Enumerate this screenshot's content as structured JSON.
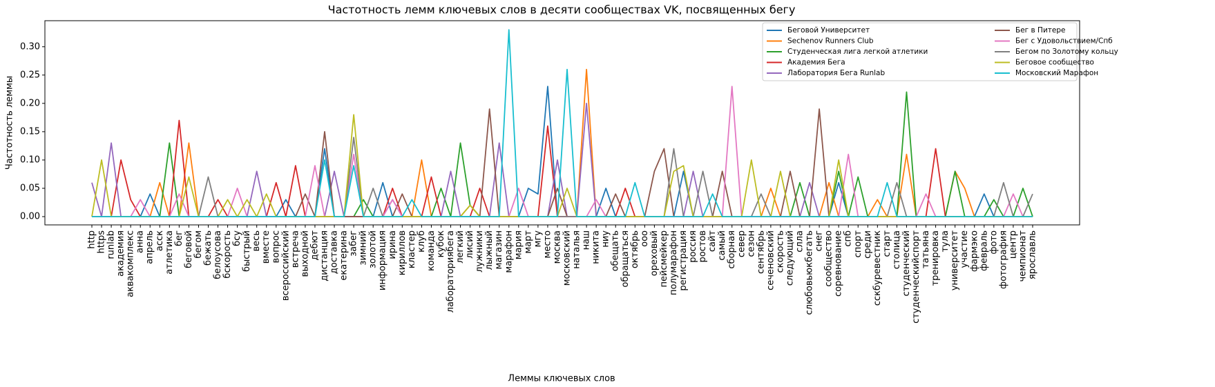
{
  "chart_data": {
    "type": "line",
    "title": "Частотность лемм ключевых слов в десяти сообществах VK, посвященных бегу",
    "x_label": "Леммы ключевых слов",
    "y_label": "Частотность леммы",
    "legend": "upper right",
    "ylim": [
      -0.0146,
      0.346
    ],
    "yticks": [
      {
        "value": 0,
        "label": "0.00"
      },
      {
        "value": 0.05,
        "label": "0.05"
      },
      {
        "value": 0.1,
        "label": "0.10"
      },
      {
        "value": 0.15,
        "label": "0.15"
      },
      {
        "value": 0.2,
        "label": "0.20"
      },
      {
        "value": 0.25,
        "label": "0.25"
      },
      {
        "value": 0.3,
        "label": "0.30"
      }
    ],
    "categories": [
      "http",
      "https",
      "runlab",
      "академия",
      "аквакомплекс",
      "анна",
      "апрель",
      "асск",
      "атлетика",
      "бег",
      "беговой",
      "бегом",
      "бежать",
      "белоусова",
      "бскорость",
      "бсу",
      "быстрый",
      "весь",
      "вместе",
      "вопрос",
      "всероссийский",
      "встреча",
      "выходной",
      "дебют",
      "дистанция",
      "доставка",
      "екатерина",
      "забег",
      "зимний",
      "золотой",
      "информация",
      "ирина",
      "кириллов",
      "кластер",
      "клуб",
      "команда",
      "кубок",
      "лабораториябега",
      "легкий",
      "лисий",
      "лужники",
      "лыжный",
      "магазин",
      "марафон",
      "мария",
      "март",
      "мгу",
      "место",
      "москва",
      "московский",
      "наталья",
      "наш",
      "никита",
      "ниу",
      "обещать",
      "обращаться",
      "октябрь",
      "ооо",
      "ореховый",
      "пейсмейкер",
      "полумарафон",
      "регистрация",
      "россия",
      "ростов",
      "сайт",
      "самый",
      "сборная",
      "север",
      "сезон",
      "сентябрь",
      "сеченовский",
      "скорость",
      "следующий",
      "слла",
      "слюбовьюкбегать",
      "снег",
      "сообщество",
      "соревнование",
      "спб",
      "спорт",
      "среди",
      "сскбуревестник",
      "старт",
      "столица",
      "студенческий",
      "студенческийспорт",
      "татьяна",
      "тренировка",
      "тула",
      "университет",
      "участие",
      "фармэко",
      "февраль",
      "фото",
      "фотография",
      "центр",
      "чемпионат",
      "ярославль"
    ],
    "series": [
      {
        "name": "Беговой Университет",
        "color": "#1f77b4",
        "values": [
          0,
          0,
          0,
          0,
          0,
          0,
          0.04,
          0,
          0,
          0,
          0,
          0,
          0,
          0,
          0,
          0,
          0,
          0,
          0,
          0,
          0.03,
          0,
          0,
          0,
          0.12,
          0,
          0,
          0,
          0,
          0,
          0.06,
          0,
          0,
          0,
          0,
          0,
          0,
          0,
          0,
          0,
          0,
          0,
          0,
          0,
          0,
          0.05,
          0.04,
          0.23,
          0,
          0,
          0,
          0,
          0,
          0.05,
          0,
          0,
          0,
          0,
          0,
          0,
          0,
          0.08,
          0,
          0,
          0,
          0,
          0,
          0,
          0,
          0,
          0,
          0,
          0,
          0,
          0,
          0,
          0,
          0.06,
          0,
          0,
          0,
          0,
          0,
          0,
          0,
          0,
          0,
          0,
          0,
          0,
          0,
          0,
          0.04,
          0,
          0,
          0,
          0,
          0
        ]
      },
      {
        "name": "Sechenov Runners Club",
        "color": "#ff7f0e",
        "values": [
          0,
          0,
          0,
          0,
          0,
          0,
          0,
          0.06,
          0,
          0,
          0.13,
          0,
          0,
          0,
          0,
          0,
          0,
          0,
          0,
          0,
          0,
          0,
          0,
          0,
          0,
          0,
          0,
          0,
          0,
          0,
          0,
          0,
          0,
          0,
          0.1,
          0,
          0,
          0,
          0,
          0.02,
          0,
          0,
          0,
          0,
          0,
          0,
          0,
          0,
          0,
          0,
          0,
          0.26,
          0,
          0,
          0,
          0,
          0,
          0,
          0,
          0,
          0,
          0,
          0,
          0,
          0,
          0,
          0,
          0,
          0,
          0,
          0.05,
          0,
          0,
          0,
          0,
          0,
          0.06,
          0,
          0,
          0,
          0,
          0.03,
          0,
          0,
          0.11,
          0,
          0,
          0,
          0,
          0.08,
          0.05,
          0,
          0,
          0,
          0,
          0,
          0,
          0
        ]
      },
      {
        "name": "Студенческая лига легкой атлетики",
        "color": "#2ca02c",
        "values": [
          0,
          0,
          0,
          0,
          0,
          0,
          0,
          0,
          0.13,
          0,
          0,
          0,
          0,
          0,
          0,
          0,
          0,
          0,
          0,
          0,
          0,
          0,
          0,
          0,
          0,
          0,
          0,
          0,
          0.03,
          0,
          0,
          0,
          0,
          0,
          0,
          0,
          0.05,
          0,
          0.13,
          0.02,
          0,
          0,
          0,
          0,
          0,
          0,
          0,
          0,
          0,
          0,
          0,
          0,
          0,
          0,
          0,
          0,
          0,
          0,
          0,
          0,
          0,
          0,
          0,
          0,
          0,
          0,
          0,
          0,
          0,
          0,
          0,
          0,
          0,
          0.06,
          0,
          0,
          0,
          0.08,
          0,
          0.07,
          0,
          0,
          0,
          0,
          0.22,
          0,
          0,
          0,
          0,
          0.08,
          0,
          0,
          0,
          0.03,
          0,
          0,
          0.05,
          0
        ]
      },
      {
        "name": "Академия Бега",
        "color": "#d62728",
        "values": [
          0,
          0,
          0,
          0.1,
          0.03,
          0,
          0,
          0,
          0,
          0.17,
          0,
          0,
          0,
          0.03,
          0,
          0,
          0,
          0,
          0,
          0.06,
          0,
          0.09,
          0,
          0,
          0,
          0,
          0,
          0,
          0,
          0,
          0,
          0.05,
          0,
          0,
          0,
          0.07,
          0,
          0,
          0,
          0,
          0.05,
          0,
          0,
          0,
          0,
          0,
          0,
          0.16,
          0,
          0,
          0,
          0,
          0,
          0,
          0,
          0.05,
          0,
          0,
          0,
          0,
          0,
          0,
          0,
          0,
          0,
          0,
          0,
          0,
          0,
          0,
          0,
          0,
          0,
          0,
          0,
          0,
          0,
          0,
          0,
          0,
          0,
          0,
          0,
          0,
          0,
          0,
          0,
          0.12,
          0,
          0,
          0,
          0,
          0,
          0,
          0,
          0,
          0,
          0
        ]
      },
      {
        "name": "Лаборатория Бега Runlab",
        "color": "#9467bd",
        "values": [
          0.06,
          0,
          0.13,
          0,
          0,
          0,
          0,
          0,
          0,
          0,
          0,
          0,
          0,
          0,
          0,
          0,
          0,
          0.08,
          0,
          0,
          0,
          0,
          0,
          0,
          0,
          0.08,
          0,
          0,
          0,
          0,
          0,
          0.03,
          0,
          0,
          0,
          0,
          0,
          0.08,
          0,
          0,
          0,
          0,
          0.13,
          0,
          0,
          0,
          0,
          0,
          0.1,
          0,
          0,
          0.2,
          0,
          0,
          0,
          0,
          0,
          0,
          0,
          0,
          0,
          0,
          0.08,
          0,
          0,
          0,
          0,
          0,
          0,
          0,
          0,
          0,
          0,
          0,
          0.06,
          0,
          0,
          0,
          0,
          0,
          0,
          0,
          0,
          0,
          0,
          0,
          0,
          0,
          0,
          0,
          0,
          0,
          0,
          0,
          0,
          0,
          0,
          0
        ]
      },
      {
        "name": "Бег в Питере",
        "color": "#8c564b",
        "values": [
          0,
          0,
          0,
          0,
          0,
          0,
          0,
          0,
          0,
          0,
          0,
          0,
          0,
          0,
          0,
          0,
          0,
          0,
          0,
          0,
          0,
          0,
          0.04,
          0,
          0.15,
          0,
          0,
          0,
          0,
          0,
          0,
          0,
          0.04,
          0,
          0,
          0,
          0,
          0,
          0,
          0,
          0,
          0.19,
          0,
          0,
          0,
          0,
          0,
          0,
          0.05,
          0,
          0,
          0,
          0,
          0,
          0.04,
          0,
          0,
          0,
          0.08,
          0.12,
          0,
          0,
          0,
          0,
          0,
          0.08,
          0,
          0,
          0,
          0,
          0,
          0,
          0.08,
          0,
          0,
          0.19,
          0,
          0,
          0,
          0,
          0,
          0,
          0,
          0,
          0,
          0,
          0,
          0,
          0,
          0,
          0,
          0,
          0,
          0,
          0,
          0,
          0,
          0
        ]
      },
      {
        "name": "Бег с Удовольствием/Спб",
        "color": "#e377c2",
        "values": [
          0,
          0,
          0,
          0,
          0,
          0.03,
          0,
          0,
          0,
          0.04,
          0,
          0,
          0,
          0,
          0,
          0.05,
          0,
          0,
          0,
          0,
          0,
          0,
          0,
          0.09,
          0,
          0,
          0,
          0.11,
          0,
          0,
          0,
          0.03,
          0,
          0,
          0,
          0,
          0,
          0,
          0,
          0,
          0,
          0,
          0,
          0,
          0.05,
          0,
          0,
          0,
          0,
          0,
          0,
          0,
          0.03,
          0,
          0,
          0,
          0,
          0,
          0,
          0,
          0,
          0,
          0,
          0,
          0,
          0,
          0.23,
          0,
          0,
          0,
          0,
          0,
          0,
          0,
          0,
          0,
          0,
          0,
          0.11,
          0,
          0,
          0,
          0,
          0,
          0,
          0,
          0.04,
          0,
          0,
          0,
          0,
          0,
          0,
          0,
          0,
          0.04,
          0,
          0
        ]
      },
      {
        "name": "Бегом по Золотому кольцу",
        "color": "#7f7f7f",
        "values": [
          0,
          0,
          0,
          0,
          0,
          0,
          0,
          0,
          0,
          0,
          0,
          0,
          0.07,
          0,
          0,
          0,
          0,
          0,
          0,
          0,
          0,
          0,
          0,
          0,
          0,
          0,
          0,
          0.14,
          0,
          0.05,
          0,
          0,
          0,
          0,
          0,
          0,
          0,
          0,
          0,
          0,
          0,
          0,
          0,
          0,
          0,
          0,
          0,
          0,
          0,
          0,
          0,
          0,
          0,
          0,
          0,
          0,
          0,
          0,
          0,
          0,
          0.12,
          0,
          0,
          0.08,
          0,
          0,
          0,
          0,
          0,
          0.04,
          0,
          0,
          0,
          0,
          0,
          0,
          0,
          0,
          0,
          0,
          0,
          0,
          0,
          0.06,
          0,
          0,
          0,
          0,
          0,
          0,
          0,
          0,
          0,
          0,
          0.06,
          0,
          0,
          0.04
        ]
      },
      {
        "name": "Беговое сообщество",
        "color": "#bcbd22",
        "values": [
          0,
          0.1,
          0,
          0,
          0,
          0,
          0,
          0,
          0,
          0,
          0.07,
          0,
          0,
          0,
          0.03,
          0,
          0.03,
          0,
          0.04,
          0,
          0,
          0,
          0,
          0,
          0,
          0,
          0,
          0.18,
          0,
          0,
          0,
          0,
          0,
          0,
          0,
          0,
          0,
          0,
          0,
          0.02,
          0,
          0,
          0,
          0,
          0,
          0,
          0,
          0,
          0,
          0.05,
          0,
          0,
          0,
          0,
          0,
          0,
          0,
          0,
          0,
          0,
          0.08,
          0.09,
          0,
          0,
          0,
          0,
          0,
          0,
          0.1,
          0,
          0,
          0.08,
          0,
          0,
          0,
          0,
          0,
          0.1,
          0,
          0,
          0,
          0,
          0,
          0,
          0,
          0,
          0,
          0,
          0,
          0,
          0,
          0,
          0,
          0,
          0,
          0,
          0,
          0
        ]
      },
      {
        "name": "Московский Марафон",
        "color": "#17becf",
        "values": [
          0,
          0,
          0,
          0,
          0,
          0,
          0,
          0,
          0,
          0,
          0,
          0,
          0,
          0,
          0,
          0,
          0,
          0,
          0,
          0,
          0,
          0,
          0,
          0,
          0.1,
          0,
          0,
          0.09,
          0,
          0,
          0,
          0,
          0,
          0.03,
          0,
          0,
          0,
          0,
          0,
          0,
          0,
          0,
          0,
          0.33,
          0,
          0,
          0,
          0,
          0,
          0.26,
          0,
          0,
          0,
          0,
          0,
          0,
          0.06,
          0,
          0,
          0,
          0,
          0,
          0,
          0,
          0.04,
          0,
          0,
          0,
          0,
          0,
          0,
          0,
          0,
          0,
          0,
          0,
          0,
          0,
          0,
          0,
          0,
          0,
          0.06,
          0,
          0,
          0,
          0,
          0,
          0,
          0,
          0,
          0,
          0,
          0,
          0,
          0,
          0,
          0
        ]
      }
    ]
  }
}
